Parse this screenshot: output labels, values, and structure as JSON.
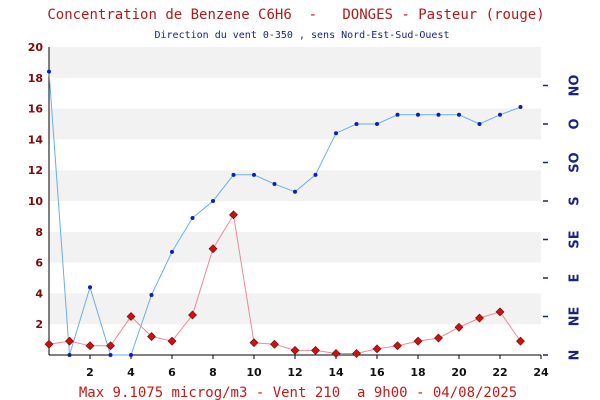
{
  "chart_data": {
    "type": "line",
    "title": "Concentration de Benzene C6H6  -   DONGES - Pasteur (rouge)",
    "subtitle": "Direction du vent 0-350 , sens Nord-Est-Sud-Ouest",
    "footer": "Max 9.1075 microg/m3 - Vent 210  a 9h00 - 04/08/2025",
    "xlim": [
      0,
      24
    ],
    "ylim": [
      0,
      20
    ],
    "x_ticks": [
      "2",
      "4",
      "6",
      "8",
      "10",
      "12",
      "14",
      "16",
      "18",
      "20",
      "22",
      "24"
    ],
    "y_ticks": [
      "2",
      "4",
      "6",
      "8",
      "10",
      "12",
      "14",
      "16",
      "18",
      "20"
    ],
    "y2_direction_ticks": [
      "N",
      "NE",
      "E",
      "SE",
      "S",
      "SO",
      "O",
      "NO"
    ],
    "series": [
      {
        "color": "#ee8899",
        "marker": "diamond",
        "marker_color": "#cc1111",
        "x": [
          0,
          1,
          2,
          3,
          4,
          5,
          6,
          7,
          8,
          9,
          10,
          11,
          12,
          13,
          14,
          15,
          16,
          17,
          18,
          19,
          20,
          21,
          22,
          23
        ],
        "values": [
          0.7,
          0.9,
          0.6,
          0.6,
          2.5,
          1.2,
          0.9,
          2.6,
          6.9,
          9.1,
          0.8,
          0.7,
          0.3,
          0.3,
          0.1,
          0.1,
          0.4,
          0.6,
          0.9,
          1.1,
          1.8,
          2.4,
          2.8,
          0.9
        ]
      },
      {
        "color": "#6aaee8",
        "marker": "dot",
        "marker_color": "#0d1fb0",
        "x": [
          0,
          1,
          2,
          3,
          4,
          5,
          6,
          7,
          8,
          9,
          10,
          11,
          12,
          13,
          14,
          15,
          16,
          17,
          18,
          19,
          20,
          21,
          22,
          23
        ],
        "values": [
          18.4,
          0.0,
          4.4,
          0.0,
          0.0,
          3.9,
          6.7,
          8.9,
          10.0,
          11.7,
          11.7,
          11.1,
          10.6,
          11.7,
          14.4,
          15.0,
          15.0,
          15.6,
          15.6,
          15.6,
          15.6,
          15.0,
          15.6,
          16.1
        ]
      }
    ],
    "grid": true
  }
}
